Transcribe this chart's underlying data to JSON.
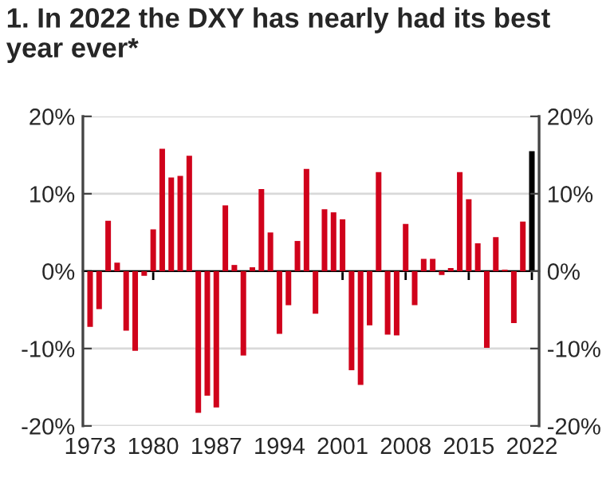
{
  "chart_data": {
    "type": "bar",
    "title": "1. In 2022 the DXY has nearly had its best year ever*",
    "categories": [
      "1973",
      null,
      null,
      null,
      null,
      null,
      null,
      "1980",
      null,
      null,
      null,
      null,
      null,
      null,
      "1987",
      null,
      null,
      null,
      null,
      null,
      null,
      "1994",
      null,
      null,
      null,
      null,
      null,
      null,
      "2001",
      null,
      null,
      null,
      null,
      null,
      null,
      "2008",
      null,
      null,
      null,
      null,
      null,
      null,
      "2015",
      null,
      null,
      null,
      null,
      null,
      null,
      "2022"
    ],
    "values": [
      -7.2,
      -4.9,
      6.5,
      1.1,
      -7.7,
      -10.3,
      -0.6,
      5.4,
      15.8,
      12.1,
      12.3,
      14.9,
      -18.3,
      -16.1,
      -17.6,
      8.5,
      0.8,
      -10.9,
      0.5,
      10.6,
      5.0,
      -8.1,
      -4.4,
      3.9,
      13.2,
      -5.5,
      8.0,
      7.6,
      6.7,
      -12.8,
      -14.7,
      -7.0,
      12.8,
      -8.2,
      -8.3,
      6.1,
      -4.4,
      1.6,
      1.6,
      -0.5,
      0.4,
      12.8,
      9.3,
      3.6,
      -9.9,
      4.4,
      0.2,
      -6.7,
      6.4,
      15.5
    ],
    "colors": [
      "#d0021b",
      "#d0021b",
      "#d0021b",
      "#d0021b",
      "#d0021b",
      "#d0021b",
      "#d0021b",
      "#d0021b",
      "#d0021b",
      "#d0021b",
      "#d0021b",
      "#d0021b",
      "#d0021b",
      "#d0021b",
      "#d0021b",
      "#d0021b",
      "#d0021b",
      "#d0021b",
      "#d0021b",
      "#d0021b",
      "#d0021b",
      "#d0021b",
      "#d0021b",
      "#d0021b",
      "#d0021b",
      "#d0021b",
      "#d0021b",
      "#d0021b",
      "#d0021b",
      "#d0021b",
      "#d0021b",
      "#d0021b",
      "#d0021b",
      "#d0021b",
      "#d0021b",
      "#d0021b",
      "#d0021b",
      "#d0021b",
      "#d0021b",
      "#d0021b",
      "#d0021b",
      "#d0021b",
      "#d0021b",
      "#d0021b",
      "#d0021b",
      "#d0021b",
      "#d0021b",
      "#d0021b",
      "#d0021b",
      "#000000"
    ],
    "ylim": [
      -20,
      20
    ],
    "yticks": [
      {
        "value": -20,
        "label": "-20%"
      },
      {
        "value": -10,
        "label": "-10%"
      },
      {
        "value": 0,
        "label": "0%"
      },
      {
        "value": 10,
        "label": "10%"
      },
      {
        "value": 20,
        "label": "20%"
      }
    ],
    "y2lim": [
      -20,
      20
    ],
    "y2ticks": [
      {
        "value": -20,
        "label": "-20%"
      },
      {
        "value": -10,
        "label": "-10%"
      },
      {
        "value": 0,
        "label": "0%"
      },
      {
        "value": 10,
        "label": "10%"
      },
      {
        "value": 20,
        "label": "20%"
      }
    ],
    "grid": "y",
    "legend": false
  }
}
